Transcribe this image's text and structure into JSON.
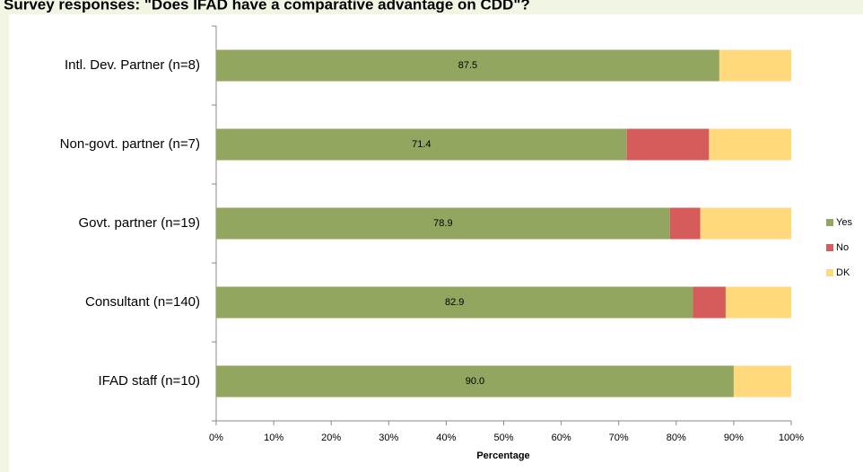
{
  "chart_data": {
    "type": "stacked-barh",
    "title": "Survey responses: \"Does IFAD have a comparative advantage on CDD\"?",
    "categories": [
      "Intl. Dev. Partner (n=8)",
      "Non-govt. partner (n=7)",
      "Govt. partner (n=19)",
      "Consultant (n=140)",
      "IFAD staff (n=10)"
    ],
    "series": [
      {
        "name": "Yes",
        "color": "#92a65f",
        "values": [
          87.5,
          71.4,
          78.9,
          82.9,
          90
        ],
        "value_labels": [
          "87.5",
          "71.4",
          "78.9",
          "82.9",
          "90.0"
        ]
      },
      {
        "name": "No",
        "color": "#d65b5b",
        "values": [
          0,
          14.3,
          5.3,
          5.7,
          0
        ]
      },
      {
        "name": "DK",
        "color": "#ffd97c",
        "values": [
          12.5,
          14.3,
          15.8,
          11.4,
          10
        ]
      }
    ],
    "xlabel": "Percentage",
    "xlim": [
      0,
      100
    ],
    "xticks": [
      {
        "value": 0,
        "label": "0%"
      },
      {
        "value": 10,
        "label": "10%"
      },
      {
        "value": 20,
        "label": "20%"
      },
      {
        "value": 30,
        "label": "30%"
      },
      {
        "value": 40,
        "label": "40%"
      },
      {
        "value": 50,
        "label": "50%"
      },
      {
        "value": 60,
        "label": "60%"
      },
      {
        "value": 70,
        "label": "70%"
      },
      {
        "value": 80,
        "label": "80%"
      },
      {
        "value": 90,
        "label": "90%"
      },
      {
        "value": 100,
        "label": "100%"
      }
    ],
    "legend": "right"
  }
}
